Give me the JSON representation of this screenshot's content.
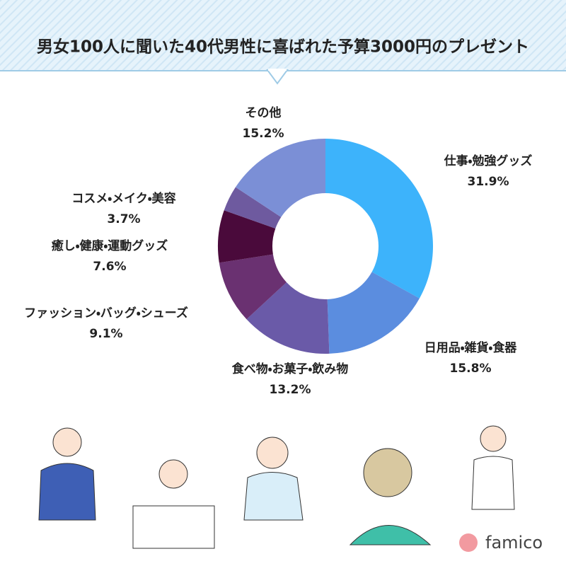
{
  "chart_data": {
    "type": "donut",
    "title": "男女100人に聞いた40代男性に喜ばれた予算3000円のプレゼント",
    "categories": [
      "仕事・勉強グッズ",
      "日用品・雑貨・食器",
      "食べ物・お菓子・飲み物",
      "ファッション・バッグ・シューズ",
      "癒し・健康・運動グッズ",
      "コスメ・メイク・美容",
      "その他"
    ],
    "values": [
      31.9,
      15.8,
      13.2,
      9.1,
      7.6,
      3.7,
      15.2
    ],
    "value_labels": [
      "31.9%",
      "15.8%",
      "13.2%",
      "9.1%",
      "7.6%",
      "3.7%",
      "15.2%"
    ],
    "colors": [
      "#3db3fb",
      "#5b8ddf",
      "#6a5aa8",
      "#6a3171",
      "#4a0a3b",
      "#6e5a9f",
      "#7b8fd6"
    ]
  },
  "logo": "famico"
}
